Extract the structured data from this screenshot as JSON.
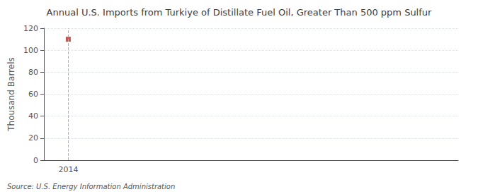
{
  "chart_data": {
    "type": "scatter",
    "title": "Annual U.S. Imports from Turkiye of Distillate Fuel Oil, Greater Than 500 ppm Sulfur",
    "ylabel": "Thousand Barrels",
    "source": "Source: U.S. Energy Information Administration",
    "x": [
      2014
    ],
    "values": [
      110
    ],
    "color": "#cc2222",
    "marker": "square",
    "xlim": [
      2013.4,
      2023.6
    ],
    "xticks": [
      2014
    ],
    "ylim": [
      0,
      120
    ],
    "yticks": [
      0,
      20,
      40,
      60,
      80,
      100,
      120
    ],
    "grid": true
  }
}
